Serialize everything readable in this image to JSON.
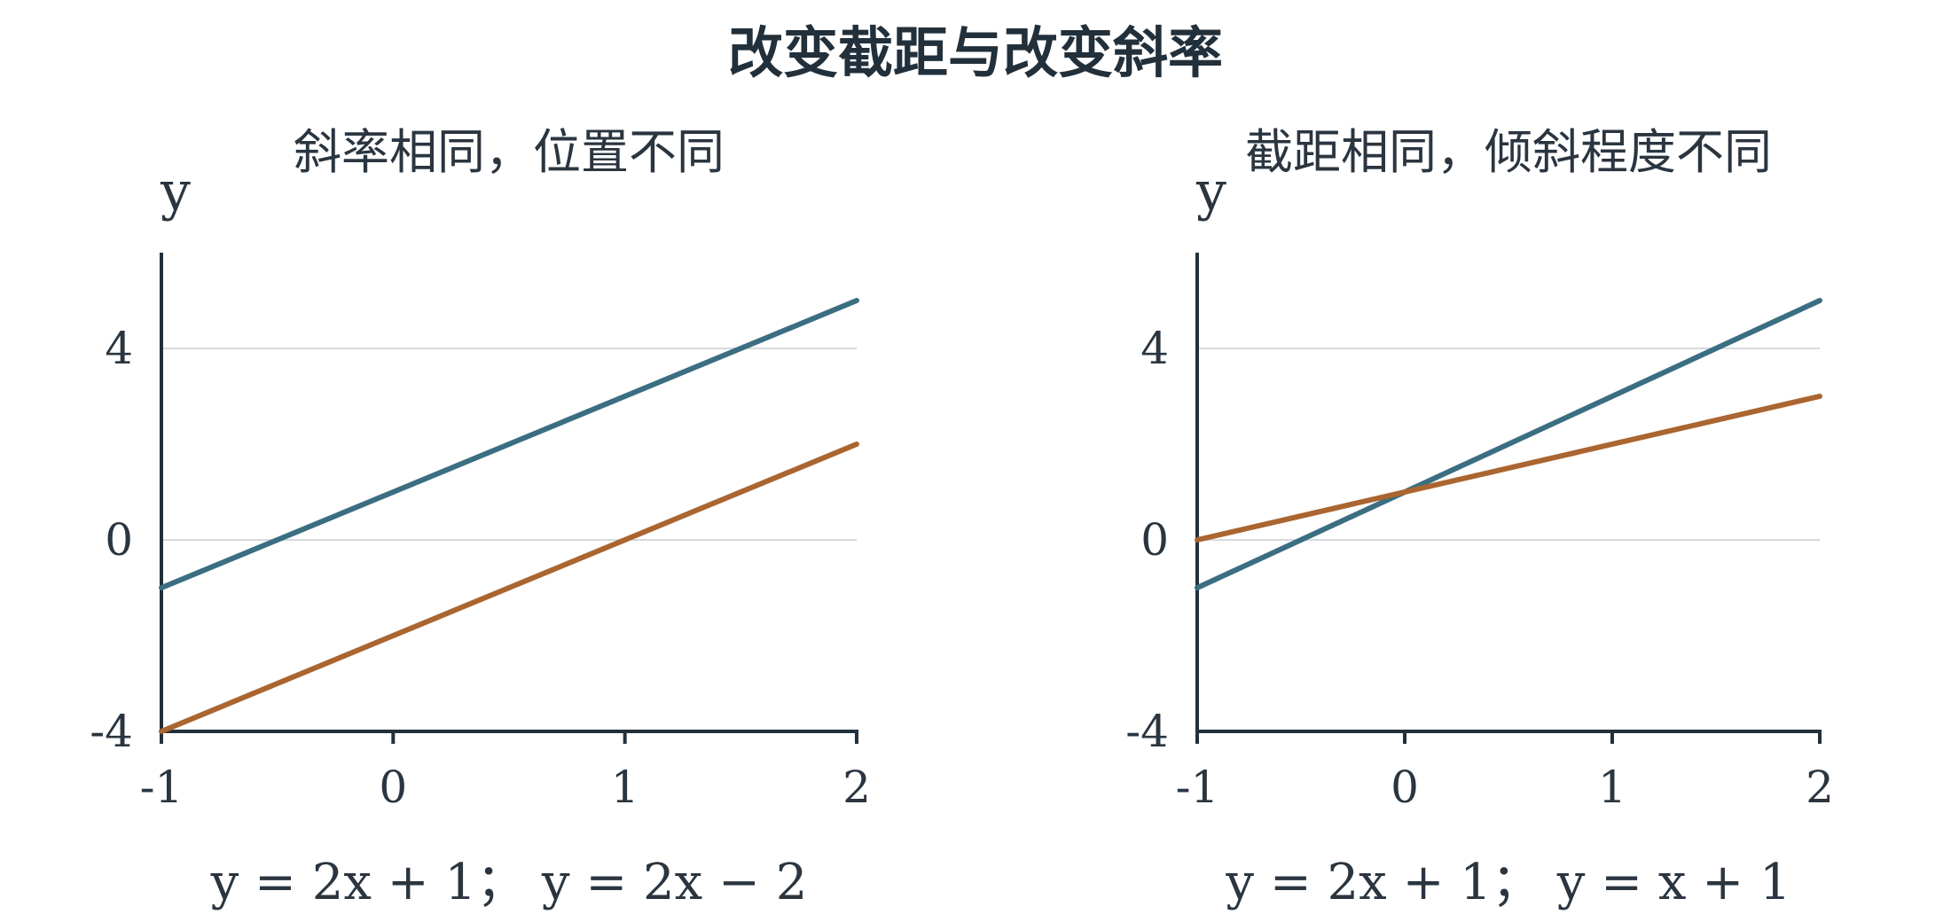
{
  "title": "改变截距与改变斜率",
  "colors": {
    "series_a": "#3b6e82",
    "series_b": "#aa6530"
  },
  "chart_data": [
    {
      "type": "line",
      "title": "斜率相同，位置不同",
      "ylabel": "y",
      "xlabel": "",
      "caption": "y = 2x + 1；  y = 2x − 2",
      "xlim": [
        -1,
        2
      ],
      "ylim": [
        -4,
        6
      ],
      "x_ticks": [
        -1,
        0,
        1,
        2
      ],
      "y_ticks": [
        -4,
        0,
        4
      ],
      "grid": "horizontal",
      "series": [
        {
          "values": [
            [
              -1,
              -1
            ],
            [
              2,
              5
            ]
          ],
          "color": "#3b6e82"
        },
        {
          "values": [
            [
              -1,
              -4
            ],
            [
              2,
              2
            ]
          ],
          "color": "#aa6530"
        }
      ]
    },
    {
      "type": "line",
      "title": "截距相同，倾斜程度不同",
      "ylabel": "y",
      "xlabel": "",
      "caption": "y = 2x + 1；  y = x + 1",
      "xlim": [
        -1,
        2
      ],
      "ylim": [
        -4,
        6
      ],
      "x_ticks": [
        -1,
        0,
        1,
        2
      ],
      "y_ticks": [
        -4,
        0,
        4
      ],
      "grid": "horizontal",
      "series": [
        {
          "values": [
            [
              -1,
              -1
            ],
            [
              2,
              5
            ]
          ],
          "color": "#3b6e82"
        },
        {
          "values": [
            [
              -1,
              0
            ],
            [
              2,
              3
            ]
          ],
          "color": "#aa6530"
        }
      ]
    }
  ]
}
